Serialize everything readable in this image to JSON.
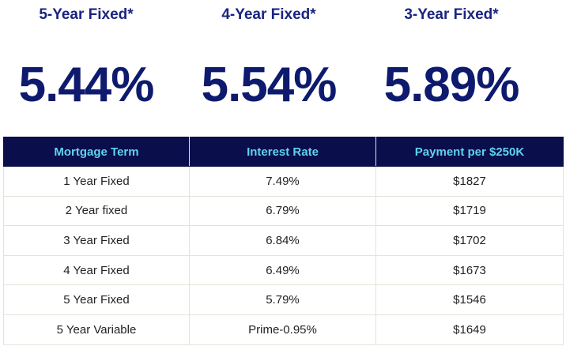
{
  "featured": [
    {
      "title": "5-Year Fixed*",
      "rate": "5.44%"
    },
    {
      "title": "4-Year Fixed*",
      "rate": "5.54%"
    },
    {
      "title": "3-Year Fixed*",
      "rate": "5.89%"
    }
  ],
  "table": {
    "headers": [
      "Mortgage Term",
      "Interest Rate",
      "Payment per $250K"
    ],
    "rows": [
      {
        "term": "1 Year Fixed",
        "rate": "7.49%",
        "payment": "$1827"
      },
      {
        "term": "2 Year fixed",
        "rate": "6.79%",
        "payment": "$1719"
      },
      {
        "term": "3 Year Fixed",
        "rate": "6.84%",
        "payment": "$1702"
      },
      {
        "term": "4 Year Fixed",
        "rate": "6.49%",
        "payment": "$1673"
      },
      {
        "term": "5 Year Fixed",
        "rate": "5.79%",
        "payment": "$1546"
      },
      {
        "term": "5 Year Variable",
        "rate": "Prime-0.95%",
        "payment": "$1649"
      }
    ]
  },
  "colors": {
    "header_bg": "#0a0e4a",
    "header_text": "#5fd3ec",
    "featured_text": "#0d1a6e"
  }
}
